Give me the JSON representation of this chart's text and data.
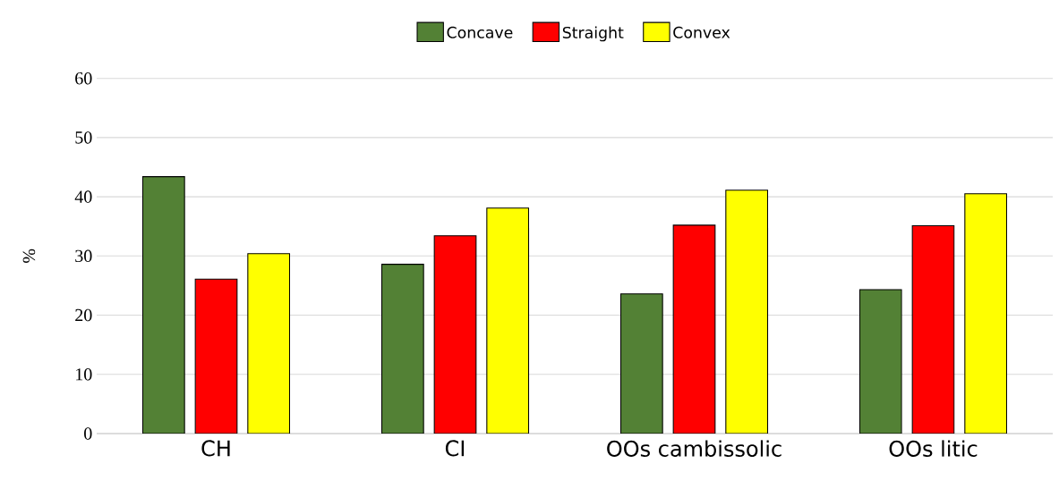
{
  "chart_data": {
    "type": "bar",
    "ylabel": "%",
    "categories": [
      "CH",
      "CI",
      "OOs cambissolic",
      "OOs litic"
    ],
    "series": [
      {
        "name": "Concave",
        "color": "#538135",
        "values": [
          43.4,
          28.6,
          23.6,
          24.3
        ]
      },
      {
        "name": "Straight",
        "color": "#ff0000",
        "values": [
          26.1,
          33.4,
          35.2,
          35.1
        ]
      },
      {
        "name": "Convex",
        "color": "#ffff00",
        "values": [
          30.4,
          38.1,
          41.1,
          40.5
        ]
      }
    ],
    "ylim": [
      0,
      60
    ],
    "yticks": [
      0,
      10,
      20,
      30,
      40,
      50,
      60
    ],
    "grid": "y",
    "legend": "top"
  }
}
